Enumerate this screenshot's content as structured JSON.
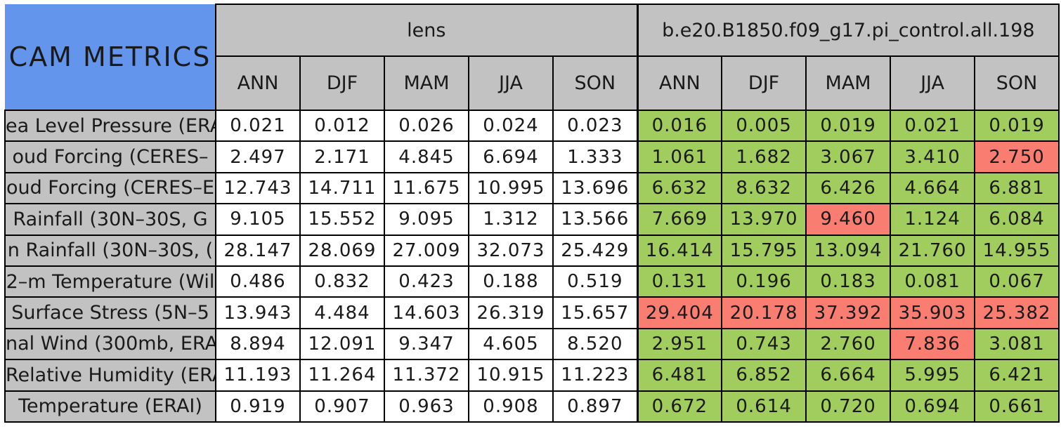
{
  "colors": {
    "title_bg": "#6495ed",
    "header_bg": "#c2c2c2",
    "cell_bg": "#ffffff",
    "good_bg": "#a1cd5e",
    "bad_bg": "#fa7d72",
    "border": "#000000",
    "text": "#1a1a1a",
    "page_bg": "#ffffff"
  },
  "chart_data": {
    "type": "table",
    "title": "CAM METRICS",
    "column_groups": [
      "lens",
      "b.e20.B1850.f09_g17.pi_control.all.198"
    ],
    "seasons": [
      "ANN",
      "DJF",
      "MAM",
      "JJA",
      "SON"
    ],
    "legend": {
      "good_color_meaning": "green cell",
      "bad_color_meaning": "red cell"
    },
    "rows": [
      {
        "label": "ea Level Pressure (ERA",
        "lens": [
          "0.021",
          "0.012",
          "0.026",
          "0.024",
          "0.023"
        ],
        "control": [
          "0.016",
          "0.005",
          "0.019",
          "0.021",
          "0.019"
        ],
        "control_status": [
          "good",
          "good",
          "good",
          "good",
          "good"
        ]
      },
      {
        "label": "oud Forcing (CERES–",
        "lens": [
          "2.497",
          "2.171",
          "4.845",
          "6.694",
          "1.333"
        ],
        "control": [
          "1.061",
          "1.682",
          "3.067",
          "3.410",
          "2.750"
        ],
        "control_status": [
          "good",
          "good",
          "good",
          "good",
          "bad"
        ]
      },
      {
        "label": "oud Forcing (CERES–E",
        "lens": [
          "12.743",
          "14.711",
          "11.675",
          "10.995",
          "13.696"
        ],
        "control": [
          "6.632",
          "8.632",
          "6.426",
          "4.664",
          "6.881"
        ],
        "control_status": [
          "good",
          "good",
          "good",
          "good",
          "good"
        ]
      },
      {
        "label": "Rainfall (30N–30S, G",
        "lens": [
          "9.105",
          "15.552",
          "9.095",
          "1.312",
          "13.566"
        ],
        "control": [
          "7.669",
          "13.970",
          "9.460",
          "1.124",
          "6.084"
        ],
        "control_status": [
          "good",
          "good",
          "bad",
          "good",
          "good"
        ]
      },
      {
        "label": "n Rainfall (30N–30S, (",
        "lens": [
          "28.147",
          "28.069",
          "27.009",
          "32.073",
          "25.429"
        ],
        "control": [
          "16.414",
          "15.795",
          "13.094",
          "21.760",
          "14.955"
        ],
        "control_status": [
          "good",
          "good",
          "good",
          "good",
          "good"
        ]
      },
      {
        "label": "2–m Temperature (Wil",
        "lens": [
          "0.486",
          "0.832",
          "0.423",
          "0.188",
          "0.519"
        ],
        "control": [
          "0.131",
          "0.196",
          "0.183",
          "0.081",
          "0.067"
        ],
        "control_status": [
          "good",
          "good",
          "good",
          "good",
          "good"
        ]
      },
      {
        "label": "Surface Stress (5N–5",
        "lens": [
          "13.943",
          "4.484",
          "14.603",
          "26.319",
          "15.657"
        ],
        "control": [
          "29.404",
          "20.178",
          "37.392",
          "35.903",
          "25.382"
        ],
        "control_status": [
          "bad",
          "bad",
          "bad",
          "bad",
          "bad"
        ]
      },
      {
        "label": "nal Wind (300mb, ERA",
        "lens": [
          "8.894",
          "12.091",
          "9.347",
          "4.605",
          "8.520"
        ],
        "control": [
          "2.951",
          "0.743",
          "2.760",
          "7.836",
          "3.081"
        ],
        "control_status": [
          "good",
          "good",
          "good",
          "bad",
          "good"
        ]
      },
      {
        "label": "Relative Humidity (ERAI",
        "lens": [
          "11.193",
          "11.264",
          "11.372",
          "10.915",
          "11.223"
        ],
        "control": [
          "6.481",
          "6.852",
          "6.664",
          "5.995",
          "6.421"
        ],
        "control_status": [
          "good",
          "good",
          "good",
          "good",
          "good"
        ]
      },
      {
        "label": "Temperature (ERAI)",
        "lens": [
          "0.919",
          "0.907",
          "0.963",
          "0.908",
          "0.897"
        ],
        "control": [
          "0.672",
          "0.614",
          "0.720",
          "0.694",
          "0.661"
        ],
        "control_status": [
          "good",
          "good",
          "good",
          "good",
          "good"
        ]
      }
    ]
  }
}
